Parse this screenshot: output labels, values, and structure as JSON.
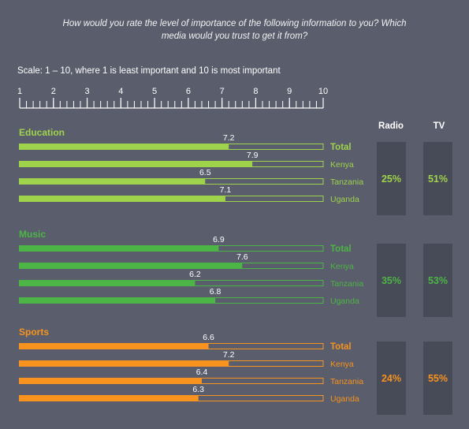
{
  "question": {
    "line1": "How would you rate the level of importance of the following information to you? Which",
    "line2": "media would you trust to get it from?"
  },
  "scale_text": "Scale: 1 – 10, where 1 is least important and 10 is most important",
  "stats_headers": {
    "radio": "Radio",
    "tv": "TV"
  },
  "colors": {
    "education": "#9fd34b",
    "music": "#4db546",
    "sports": "#f7931e",
    "box": "#474a57"
  },
  "chart_data": {
    "type": "bar",
    "orientation": "horizontal",
    "xlim": [
      1,
      10
    ],
    "ticks": [
      1,
      2,
      3,
      4,
      5,
      6,
      7,
      8,
      9,
      10
    ],
    "categories": [
      "Total",
      "Kenya",
      "Tanzania",
      "Uganda"
    ],
    "groups": [
      {
        "name": "Education",
        "color": "#9fd34b",
        "values": [
          7.2,
          7.9,
          6.5,
          7.1
        ],
        "radio": "25%",
        "tv": "51%"
      },
      {
        "name": "Music",
        "color": "#4db546",
        "values": [
          6.9,
          7.6,
          6.2,
          6.8
        ],
        "radio": "35%",
        "tv": "53%"
      },
      {
        "name": "Sports",
        "color": "#f7931e",
        "values": [
          6.6,
          7.2,
          6.4,
          6.3
        ],
        "radio": "24%",
        "tv": "55%"
      }
    ]
  }
}
